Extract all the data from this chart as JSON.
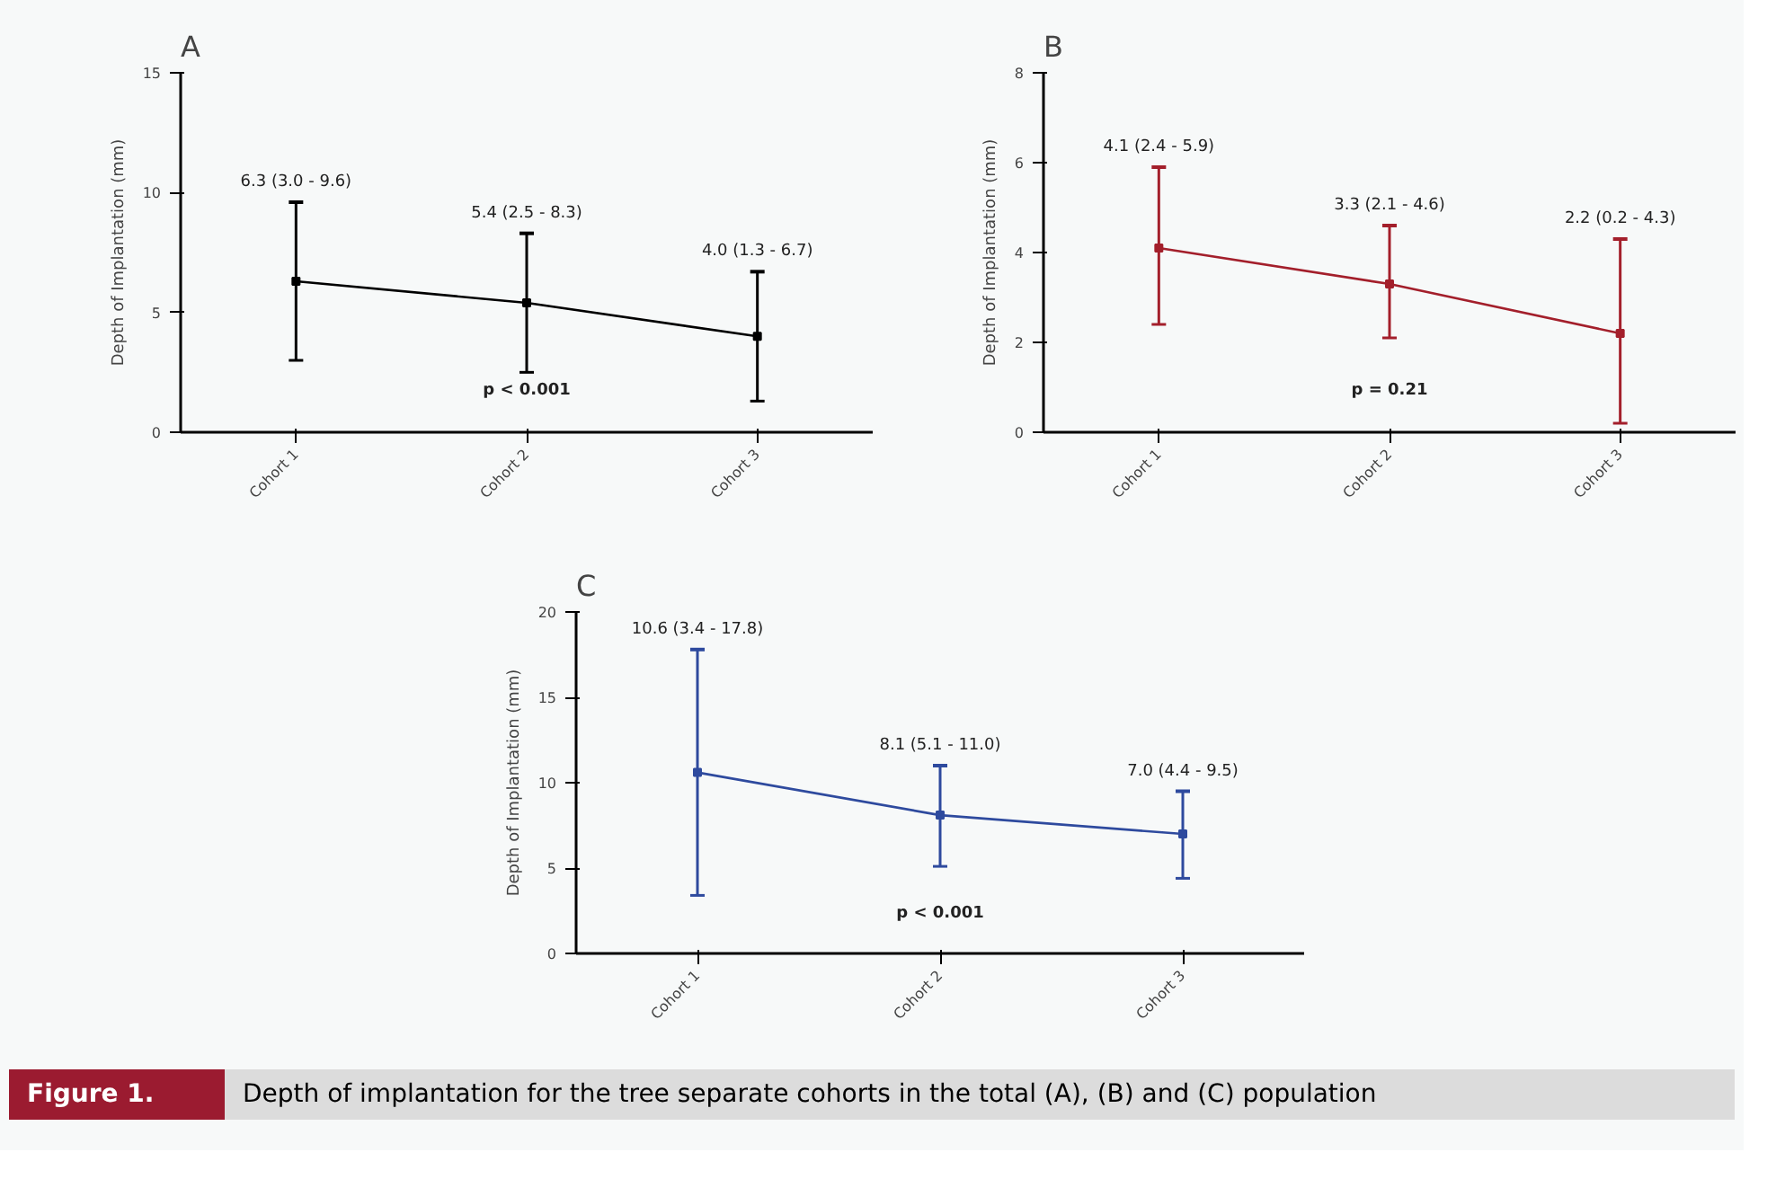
{
  "chart_data": [
    {
      "type": "line",
      "title": "A",
      "ylabel": "Depth of Implantation (mm)",
      "categories": [
        "Cohort 1",
        "Cohort 2",
        "Cohort 3"
      ],
      "ylim": [
        0,
        15
      ],
      "yticks": [
        0,
        5,
        10,
        15
      ],
      "marker": "square",
      "grid": false,
      "annotations": [
        "p < 0.001",
        {
          "text": "6.3 (3.0 - 9.6)",
          "x": "Cohort 1",
          "y": 9.6
        },
        {
          "text": "5.4 (2.5 - 8.3)",
          "x": "Cohort 2",
          "y": 8.3
        },
        {
          "text": "4.0 (1.3 - 6.7)",
          "x": "Cohort 3",
          "y": 6.7
        }
      ],
      "series": [
        {
          "color": "#000000",
          "values": [
            6.3,
            5.4,
            4.0
          ],
          "errors": [
            [
              3.0,
              9.6
            ],
            [
              2.5,
              8.3
            ],
            [
              1.3,
              6.7
            ]
          ]
        }
      ]
    },
    {
      "type": "line",
      "title": "B",
      "ylabel": "Depth of Implantation (mm)",
      "categories": [
        "Cohort 1",
        "Cohort 2",
        "Cohort 3"
      ],
      "ylim": [
        0,
        8
      ],
      "yticks": [
        0,
        2,
        4,
        6,
        8
      ],
      "marker": "square",
      "grid": false,
      "annotations": [
        "p = 0.21",
        {
          "text": "4.1 (2.4 - 5.9)",
          "x": "Cohort 1",
          "y": 5.9
        },
        {
          "text": "3.3 (2.1 - 4.6)",
          "x": "Cohort 2",
          "y": 4.6
        },
        {
          "text": "2.2 (0.2 - 4.3)",
          "x": "Cohort 3",
          "y": 4.3
        }
      ],
      "series": [
        {
          "color": "#a31f2b",
          "values": [
            4.1,
            3.3,
            2.2
          ],
          "errors": [
            [
              2.4,
              5.9
            ],
            [
              2.1,
              4.6
            ],
            [
              0.2,
              4.3
            ]
          ]
        }
      ]
    },
    {
      "type": "line",
      "title": "C",
      "ylabel": "Depth of Implantation (mm)",
      "categories": [
        "Cohort 1",
        "Cohort 2",
        "Cohort 3"
      ],
      "ylim": [
        0,
        20
      ],
      "yticks": [
        0,
        5,
        10,
        15,
        20
      ],
      "marker": "square",
      "grid": false,
      "annotations": [
        "p < 0.001",
        {
          "text": "10.6 (3.4 - 17.8)",
          "x": "Cohort 1",
          "y": 17.8
        },
        {
          "text": "8.1 (5.1 - 11.0)",
          "x": "Cohort 2",
          "y": 11.0
        },
        {
          "text": "7.0 (4.4 - 9.5)",
          "x": "Cohort 3",
          "y": 9.5
        },
        "Figure 1.",
        "Depth of implantation for the tree separate cohorts in the total (A), (B) and (C) population"
      ],
      "series": [
        {
          "color": "#2e4a9e",
          "values": [
            10.6,
            8.1,
            7.0
          ],
          "errors": [
            [
              3.4,
              17.8
            ],
            [
              5.1,
              11.0
            ],
            [
              4.4,
              9.5
            ]
          ]
        }
      ]
    }
  ]
}
